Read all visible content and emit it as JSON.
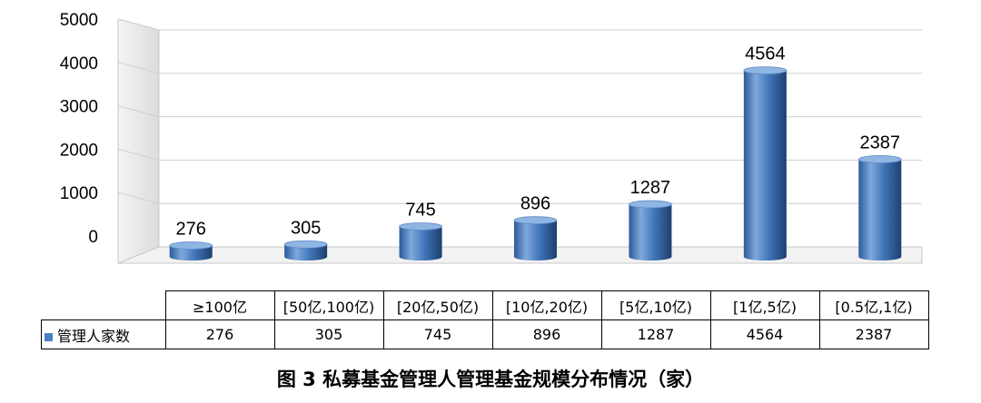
{
  "caption": "图 3  私募基金管理人管理基金规模分布情况（家）",
  "chart_data": {
    "type": "bar",
    "categories": [
      "≥100亿",
      "[50亿,100亿)",
      "[20亿,50亿)",
      "[10亿,20亿)",
      "[5亿,10亿)",
      "[1亿,5亿)",
      "[0.5亿,1亿)"
    ],
    "series": [
      {
        "name": "管理人家数",
        "values": [
          276,
          305,
          745,
          896,
          1287,
          4564,
          2387
        ]
      }
    ],
    "ylim": [
      0,
      5000
    ],
    "yticks": [
      "0",
      "1000",
      "2000",
      "3000",
      "4000",
      "5000"
    ],
    "grid": true,
    "legend": "data table",
    "data_labels": [
      "276",
      "305",
      "745",
      "896",
      "1287",
      "4564",
      "2387"
    ],
    "colors": {
      "bar": "#3f74b8",
      "bar_light": "#7fa9dc",
      "bar_dark": "#1d3f6e"
    },
    "style": "3d-cylinder"
  }
}
